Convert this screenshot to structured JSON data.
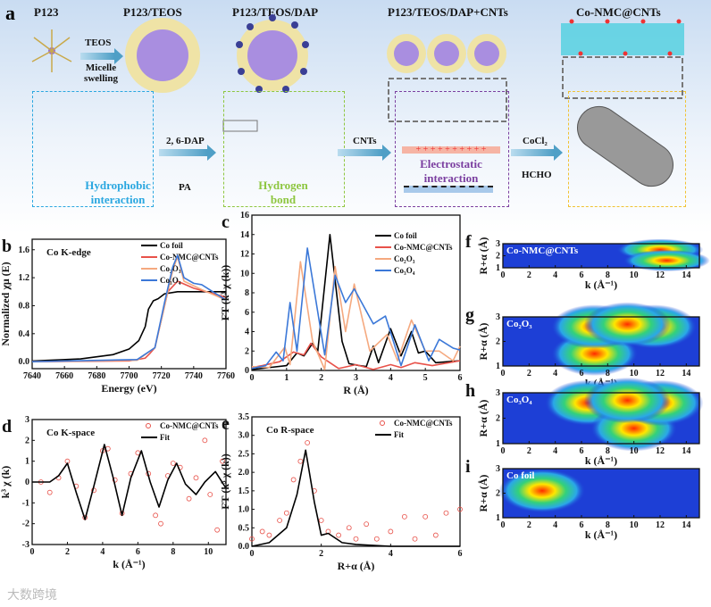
{
  "panel_a": {
    "letter": "a",
    "stages": [
      "P123",
      "P123/TEOS",
      "P123/TEOS/DAP",
      "P123/TEOS/DAP+CNTs",
      "Co-NMC@CNTs"
    ],
    "arrow_labels": {
      "teos": "TEOS",
      "swelling": "Micelle swelling",
      "dap": "2, 6-DAP",
      "pa": "PA",
      "cnts": "CNTs",
      "cocl2": "CoCl₂",
      "hcho": "HCHO"
    },
    "box_labels": {
      "hydrophobic": "Hydrophobic interaction",
      "hbond": "Hydrogen bond",
      "electro": "Electrostatic interaction"
    },
    "colors": {
      "hydrophobic": "#2aa7e0",
      "hbond": "#8dc63f",
      "electro": "#7b3fa0",
      "cocnt": "#f1c232"
    }
  },
  "watermark": "大数跨境",
  "chart_data": [
    {
      "id": "b",
      "letter": "b",
      "type": "line",
      "annotation": "Co K-edge",
      "xlabel": "Energy (eV)",
      "ylabel": "Normalized χμ (E)",
      "xlim": [
        7640,
        7760
      ],
      "ylim": [
        -0.1,
        1.75
      ],
      "xticks": [
        7640,
        7660,
        7680,
        7700,
        7720,
        7740,
        7760
      ],
      "yticks": [
        0.0,
        0.4,
        0.8,
        1.2,
        1.6
      ],
      "legend": "top-right",
      "series": [
        {
          "name": "Co foil",
          "color": "#000000",
          "points": [
            [
              7640,
              0.01
            ],
            [
              7670,
              0.04
            ],
            [
              7690,
              0.1
            ],
            [
              7700,
              0.18
            ],
            [
              7706,
              0.3
            ],
            [
              7710,
              0.5
            ],
            [
              7712,
              0.75
            ],
            [
              7715,
              0.87
            ],
            [
              7718,
              0.9
            ],
            [
              7722,
              0.97
            ],
            [
              7730,
              1.0
            ],
            [
              7760,
              1.0
            ]
          ]
        },
        {
          "name": "Co-NMC@CNTs",
          "color": "#e8524a",
          "points": [
            [
              7640,
              0
            ],
            [
              7700,
              0.01
            ],
            [
              7710,
              0.05
            ],
            [
              7713,
              0.12
            ],
            [
              7716,
              0.2
            ],
            [
              7720,
              0.6
            ],
            [
              7724,
              1.0
            ],
            [
              7730,
              1.15
            ],
            [
              7740,
              1.05
            ],
            [
              7760,
              0.92
            ]
          ]
        },
        {
          "name": "Co₂O₃",
          "color": "#f5a97f",
          "points": [
            [
              7640,
              0
            ],
            [
              7705,
              0.02
            ],
            [
              7716,
              0.2
            ],
            [
              7722,
              0.8
            ],
            [
              7727,
              1.3
            ],
            [
              7730,
              1.5
            ],
            [
              7734,
              1.15
            ],
            [
              7745,
              1.03
            ],
            [
              7760,
              0.88
            ]
          ]
        },
        {
          "name": "Co₃O₄",
          "color": "#3b78d8",
          "points": [
            [
              7640,
              0
            ],
            [
              7705,
              0.03
            ],
            [
              7716,
              0.2
            ],
            [
              7722,
              0.85
            ],
            [
              7727,
              1.35
            ],
            [
              7730,
              1.52
            ],
            [
              7734,
              1.2
            ],
            [
              7740,
              1.12
            ],
            [
              7745,
              1.1
            ],
            [
              7760,
              0.88
            ]
          ]
        }
      ]
    },
    {
      "id": "c",
      "letter": "c",
      "type": "line",
      "xlabel": "R (Å)",
      "ylabel": "FT (k³ χ (k))",
      "xlim": [
        0,
        6
      ],
      "ylim": [
        0,
        16
      ],
      "xticks": [
        0,
        1,
        2,
        3,
        4,
        5,
        6
      ],
      "yticks": [
        0,
        2,
        4,
        6,
        8,
        10,
        12,
        14,
        16
      ],
      "legend": "top-right",
      "series": [
        {
          "name": "Co foil",
          "color": "#000000",
          "points": [
            [
              0,
              0.1
            ],
            [
              0.5,
              0.3
            ],
            [
              1,
              0.5
            ],
            [
              1.3,
              1.8
            ],
            [
              1.5,
              1.5
            ],
            [
              1.75,
              2.8
            ],
            [
              1.9,
              2
            ],
            [
              2.25,
              14
            ],
            [
              2.6,
              3
            ],
            [
              2.8,
              0.7
            ],
            [
              3.1,
              0.5
            ],
            [
              3.3,
              0.4
            ],
            [
              3.5,
              2.5
            ],
            [
              3.65,
              0.8
            ],
            [
              4,
              4.3
            ],
            [
              4.3,
              1.5
            ],
            [
              4.6,
              4
            ],
            [
              4.8,
              1.8
            ],
            [
              5,
              2
            ],
            [
              5.3,
              0.8
            ],
            [
              6,
              1
            ]
          ]
        },
        {
          "name": "Co-NMC@CNTs",
          "color": "#e8524a",
          "points": [
            [
              0,
              0.3
            ],
            [
              0.3,
              0.5
            ],
            [
              0.8,
              0.9
            ],
            [
              1.2,
              1.9
            ],
            [
              1.5,
              1.6
            ],
            [
              1.7,
              2.8
            ],
            [
              2,
              1.4
            ],
            [
              2.5,
              0.2
            ],
            [
              3,
              0.6
            ],
            [
              3.5,
              0.1
            ],
            [
              4,
              0.6
            ],
            [
              4.3,
              0.3
            ],
            [
              4.7,
              0.8
            ],
            [
              5.2,
              0.5
            ],
            [
              6,
              1
            ]
          ]
        },
        {
          "name": "Co₂O₃",
          "color": "#f5a97f",
          "points": [
            [
              0,
              0.4
            ],
            [
              0.5,
              0.3
            ],
            [
              0.95,
              2.4
            ],
            [
              1.1,
              0.6
            ],
            [
              1.4,
              11.2
            ],
            [
              1.75,
              3
            ],
            [
              2.1,
              0.1
            ],
            [
              2.4,
              10.7
            ],
            [
              2.7,
              4
            ],
            [
              2.95,
              8.9
            ],
            [
              3.4,
              2
            ],
            [
              3.9,
              3.7
            ],
            [
              4.2,
              1
            ],
            [
              4.6,
              5.2
            ],
            [
              5,
              2
            ],
            [
              5.4,
              2
            ],
            [
              5.8,
              1
            ],
            [
              6,
              2.5
            ]
          ]
        },
        {
          "name": "Co₃O₄",
          "color": "#3b78d8",
          "points": [
            [
              0,
              0.2
            ],
            [
              0.4,
              0.5
            ],
            [
              0.7,
              1.9
            ],
            [
              0.9,
              1
            ],
            [
              1.1,
              7
            ],
            [
              1.3,
              2
            ],
            [
              1.6,
              12.6
            ],
            [
              2.1,
              1.6
            ],
            [
              2.4,
              9.8
            ],
            [
              2.7,
              7
            ],
            [
              2.95,
              8.4
            ],
            [
              3.5,
              4.8
            ],
            [
              3.85,
              5.6
            ],
            [
              4.3,
              0.5
            ],
            [
              4.7,
              4.7
            ],
            [
              5.1,
              1
            ],
            [
              5.4,
              3.2
            ],
            [
              5.8,
              2.3
            ],
            [
              6,
              2.1
            ]
          ]
        }
      ]
    },
    {
      "id": "d",
      "letter": "d",
      "type": "line",
      "annotation": "Co K-space",
      "xlabel": "k (Å⁻¹)",
      "ylabel": "k³ χ (k)",
      "xlim": [
        0,
        11
      ],
      "ylim": [
        -3,
        3
      ],
      "xticks": [
        0,
        2,
        4,
        6,
        8,
        10
      ],
      "yticks": [
        -3,
        -2,
        -1,
        0,
        1,
        2,
        3
      ],
      "legend": "top-right",
      "series": [
        {
          "name": "Co-NMC@CNTs",
          "color": "#e8524a",
          "marker": "circle",
          "points": [
            [
              0.5,
              0
            ],
            [
              1,
              -0.5
            ],
            [
              1.5,
              0.2
            ],
            [
              2,
              1.0
            ],
            [
              2.5,
              -0.2
            ],
            [
              3,
              -1.7
            ],
            [
              3.5,
              -0.4
            ],
            [
              4,
              1.5
            ],
            [
              4.3,
              1.6
            ],
            [
              4.7,
              0.1
            ],
            [
              5.1,
              -1.5
            ],
            [
              5.6,
              0.4
            ],
            [
              6,
              1.4
            ],
            [
              6.6,
              0.4
            ],
            [
              7,
              -1.6
            ],
            [
              7.3,
              -2.0
            ],
            [
              7.7,
              0.3
            ],
            [
              8,
              0.9
            ],
            [
              8.4,
              0.7
            ],
            [
              8.9,
              -0.8
            ],
            [
              9.3,
              0.2
            ],
            [
              9.8,
              2.0
            ],
            [
              10.1,
              -0.6
            ],
            [
              10.5,
              -2.3
            ],
            [
              10.8,
              1.0
            ]
          ]
        },
        {
          "name": "Fit",
          "color": "#000000",
          "points": [
            [
              0,
              0
            ],
            [
              1,
              0
            ],
            [
              1.5,
              0.3
            ],
            [
              2,
              0.9
            ],
            [
              2.5,
              -0.5
            ],
            [
              3,
              -1.8
            ],
            [
              3.5,
              -0.2
            ],
            [
              4.1,
              1.8
            ],
            [
              4.6,
              0.2
            ],
            [
              5.1,
              -1.6
            ],
            [
              5.6,
              0.2
            ],
            [
              6.2,
              1.5
            ],
            [
              6.7,
              0
            ],
            [
              7.2,
              -1.2
            ],
            [
              7.7,
              0.1
            ],
            [
              8.2,
              0.9
            ],
            [
              8.7,
              -0.1
            ],
            [
              9.3,
              -0.6
            ],
            [
              9.8,
              0
            ],
            [
              10.4,
              0.5
            ],
            [
              11,
              -0.3
            ]
          ]
        }
      ]
    },
    {
      "id": "e",
      "letter": "e",
      "type": "line",
      "annotation": "Co R-space",
      "xlabel": "R+α (Å)",
      "ylabel": "FT (k³ χ (k))",
      "xlim": [
        0,
        6
      ],
      "ylim": [
        0,
        3.5
      ],
      "xticks": [
        0,
        2,
        4,
        6
      ],
      "yticks": [
        0.0,
        0.5,
        1.0,
        1.5,
        2.0,
        2.5,
        3.0,
        3.5
      ],
      "legend": "top-right",
      "series": [
        {
          "name": "Co-NMC@CNTs",
          "color": "#e8524a",
          "marker": "circle",
          "points": [
            [
              0,
              0.2
            ],
            [
              0.3,
              0.4
            ],
            [
              0.5,
              0.3
            ],
            [
              0.8,
              0.7
            ],
            [
              1,
              0.9
            ],
            [
              1.2,
              1.8
            ],
            [
              1.4,
              2.3
            ],
            [
              1.6,
              2.8
            ],
            [
              1.8,
              1.5
            ],
            [
              2,
              0.7
            ],
            [
              2.2,
              0.4
            ],
            [
              2.5,
              0.3
            ],
            [
              2.8,
              0.5
            ],
            [
              3,
              0.2
            ],
            [
              3.3,
              0.6
            ],
            [
              3.6,
              0.2
            ],
            [
              4,
              0.4
            ],
            [
              4.4,
              0.8
            ],
            [
              4.7,
              0.2
            ],
            [
              5,
              0.8
            ],
            [
              5.3,
              0.3
            ],
            [
              5.6,
              0.9
            ],
            [
              6,
              1.0
            ]
          ]
        },
        {
          "name": "Fit",
          "color": "#000000",
          "points": [
            [
              0,
              0
            ],
            [
              0.5,
              0.1
            ],
            [
              1,
              0.5
            ],
            [
              1.3,
              1.4
            ],
            [
              1.55,
              2.6
            ],
            [
              1.8,
              1.2
            ],
            [
              2,
              0.3
            ],
            [
              2.2,
              0.35
            ],
            [
              2.6,
              0.1
            ],
            [
              3,
              0.05
            ],
            [
              4,
              0
            ],
            [
              6,
              0
            ]
          ]
        }
      ]
    },
    {
      "id": "f",
      "letter": "f",
      "type": "heatmap",
      "annotation": "Co-NMC@CNTs",
      "xlabel": "k (Å⁻¹)",
      "ylabel": "R+α (Å)",
      "xlim": [
        0,
        15
      ],
      "ylim": [
        1,
        3
      ],
      "xticks": [
        0,
        2,
        4,
        6,
        8,
        10,
        12,
        14
      ],
      "yticks": [
        1,
        2,
        3
      ],
      "maxima": [
        [
          12,
          2.5
        ],
        [
          12.5,
          1.6
        ]
      ]
    },
    {
      "id": "g",
      "letter": "g",
      "type": "heatmap",
      "annotation": "Co₂O₃",
      "xlabel": "k (Å⁻¹)",
      "ylabel": "R+α (Å)",
      "xlim": [
        0,
        15
      ],
      "ylim": [
        1,
        3
      ],
      "xticks": [
        0,
        2,
        4,
        6,
        8,
        10,
        12,
        14
      ],
      "yticks": [
        1,
        2,
        3
      ],
      "maxima": [
        [
          7,
          1.5
        ],
        [
          7,
          2.6
        ],
        [
          11.5,
          2.6
        ],
        [
          9.5,
          2.7
        ]
      ]
    },
    {
      "id": "h",
      "letter": "h",
      "type": "heatmap",
      "annotation": "Co₃O₄",
      "xlabel": "k (Å⁻¹)",
      "ylabel": "R+α (Å)",
      "xlim": [
        0,
        15
      ],
      "ylim": [
        1,
        3
      ],
      "xticks": [
        0,
        2,
        4,
        6,
        8,
        10,
        12,
        14
      ],
      "yticks": [
        1,
        2,
        3
      ],
      "maxima": [
        [
          6.5,
          2.6
        ],
        [
          10,
          1.6
        ],
        [
          12,
          2.6
        ],
        [
          9.5,
          2.7
        ]
      ]
    },
    {
      "id": "i",
      "letter": "i",
      "type": "heatmap",
      "annotation": "Co foil",
      "xlabel": "k (Å⁻¹)",
      "ylabel": "R+α (Å)",
      "xlim": [
        0,
        15
      ],
      "ylim": [
        1,
        3
      ],
      "xticks": [
        0,
        2,
        4,
        6,
        8,
        10,
        12,
        14
      ],
      "yticks": [
        1,
        2,
        3
      ],
      "maxima": [
        [
          3,
          2.1
        ]
      ]
    }
  ]
}
